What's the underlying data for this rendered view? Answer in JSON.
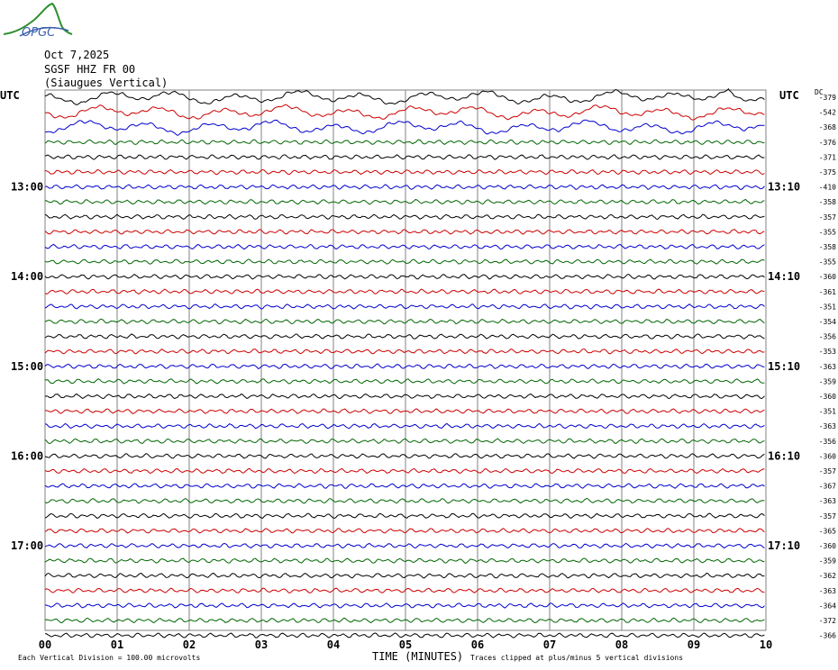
{
  "header": {
    "date": "Oct 7,2025",
    "station": "SGSF HHZ FR 00",
    "location": "(Siaugues Vertical)",
    "logo_text": "OPGC"
  },
  "footer": {
    "scale_note": "Each Vertical Division =  100.00 microvolts",
    "xlabel": "TIME (MINUTES)",
    "clip_note": "Traces clipped at plus/minus 5 vertical divisions"
  },
  "colors": {
    "grid": "#808080",
    "trace_cycle": [
      "#000000",
      "#cc0000",
      "#0000cc",
      "#006600"
    ]
  },
  "chart_data": {
    "type": "line",
    "title": "",
    "left_axis_label": "UTC",
    "right_axis_label": "UTC",
    "dc_label": "DC",
    "x_ticks": [
      "00",
      "01",
      "02",
      "03",
      "04",
      "05",
      "06",
      "07",
      "08",
      "09",
      "10"
    ],
    "xlim": [
      0,
      10
    ],
    "left_hour_labels": [
      {
        "row": 6,
        "label": "13:00"
      },
      {
        "row": 12,
        "label": "14:00"
      },
      {
        "row": 18,
        "label": "15:00"
      },
      {
        "row": 24,
        "label": "16:00"
      },
      {
        "row": 30,
        "label": "17:00"
      }
    ],
    "right_hour_labels": [
      {
        "row": 6,
        "label": "13:10"
      },
      {
        "row": 12,
        "label": "14:10"
      },
      {
        "row": 18,
        "label": "15:10"
      },
      {
        "row": 24,
        "label": "16:10"
      },
      {
        "row": 30,
        "label": "17:10"
      }
    ],
    "dc_offsets": [
      "-379",
      "-542",
      "-368",
      "-376",
      "-371",
      "-375",
      "-410",
      "-358",
      "-357",
      "-355",
      "-358",
      "-355",
      "-360",
      "-361",
      "-351",
      "-354",
      "-356",
      "-353",
      "-363",
      "-359",
      "-360",
      "-351",
      "-363",
      "-356",
      "-360",
      "-357",
      "-367",
      "-363",
      "-357",
      "-365",
      "-360",
      "-359",
      "-362",
      "-363",
      "-364",
      "-372",
      "-366"
    ]
  }
}
